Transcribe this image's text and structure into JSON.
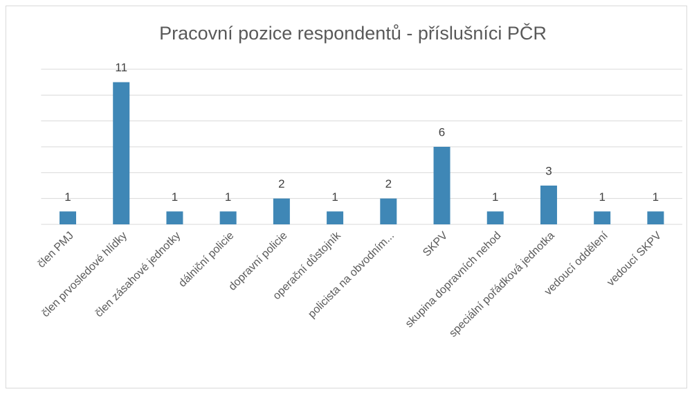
{
  "chart_data": {
    "type": "bar",
    "title": "Pracovní pozice respondentů - příslušníci PČR",
    "categories": [
      "člen PMJ",
      "člen prvosledové hlídky",
      "člen zásahové jednotky",
      "dálniční policie",
      "dopravní policie",
      "operační důstojník",
      "policista na obvodním...",
      "SKPV",
      "skupina dopravních nehod",
      "speciální pořádková jednotka",
      "vedoucí oddělení",
      "vedoucí SKPV"
    ],
    "values": [
      1,
      11,
      1,
      1,
      2,
      1,
      2,
      6,
      1,
      3,
      1,
      1
    ],
    "color": "#3f87b6",
    "ylim": [
      0,
      12
    ],
    "yticks": [
      0,
      2,
      4,
      6,
      8,
      10,
      12
    ],
    "grid": true
  }
}
